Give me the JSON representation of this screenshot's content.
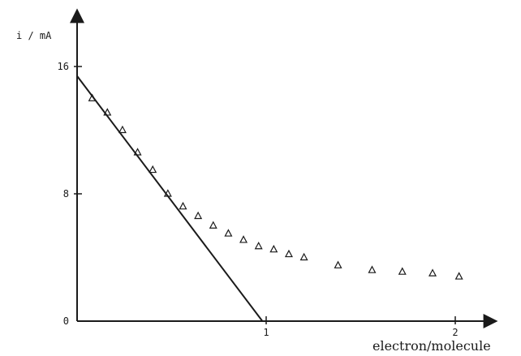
{
  "chart_data": {
    "type": "scatter",
    "title": "",
    "xlabel": "electron/molecule",
    "ylabel": "i / mA",
    "xlim": [
      0,
      2.25
    ],
    "ylim": [
      0,
      20
    ],
    "xticks": [
      {
        "value": 1,
        "label": "1"
      },
      {
        "value": 2,
        "label": "2"
      }
    ],
    "yticks": [
      {
        "value": 0,
        "label": "0"
      },
      {
        "value": 8,
        "label": "8"
      },
      {
        "value": 16,
        "label": "16"
      }
    ],
    "grid": false,
    "fit_line": {
      "x": [
        0,
        0.98
      ],
      "y": [
        15.4,
        0
      ]
    },
    "series": [
      {
        "marker": "triangle",
        "x": [
          0.08,
          0.16,
          0.24,
          0.32,
          0.4,
          0.48,
          0.56,
          0.64,
          0.72,
          0.8,
          0.88,
          0.96,
          1.04,
          1.12,
          1.2,
          1.38,
          1.56,
          1.72,
          1.88,
          2.02
        ],
        "y": [
          14.0,
          13.1,
          12.0,
          10.6,
          9.5,
          8.0,
          7.2,
          6.6,
          6.0,
          5.5,
          5.1,
          4.7,
          4.5,
          4.2,
          4.0,
          3.5,
          3.2,
          3.1,
          3.0,
          2.8
        ]
      }
    ]
  }
}
